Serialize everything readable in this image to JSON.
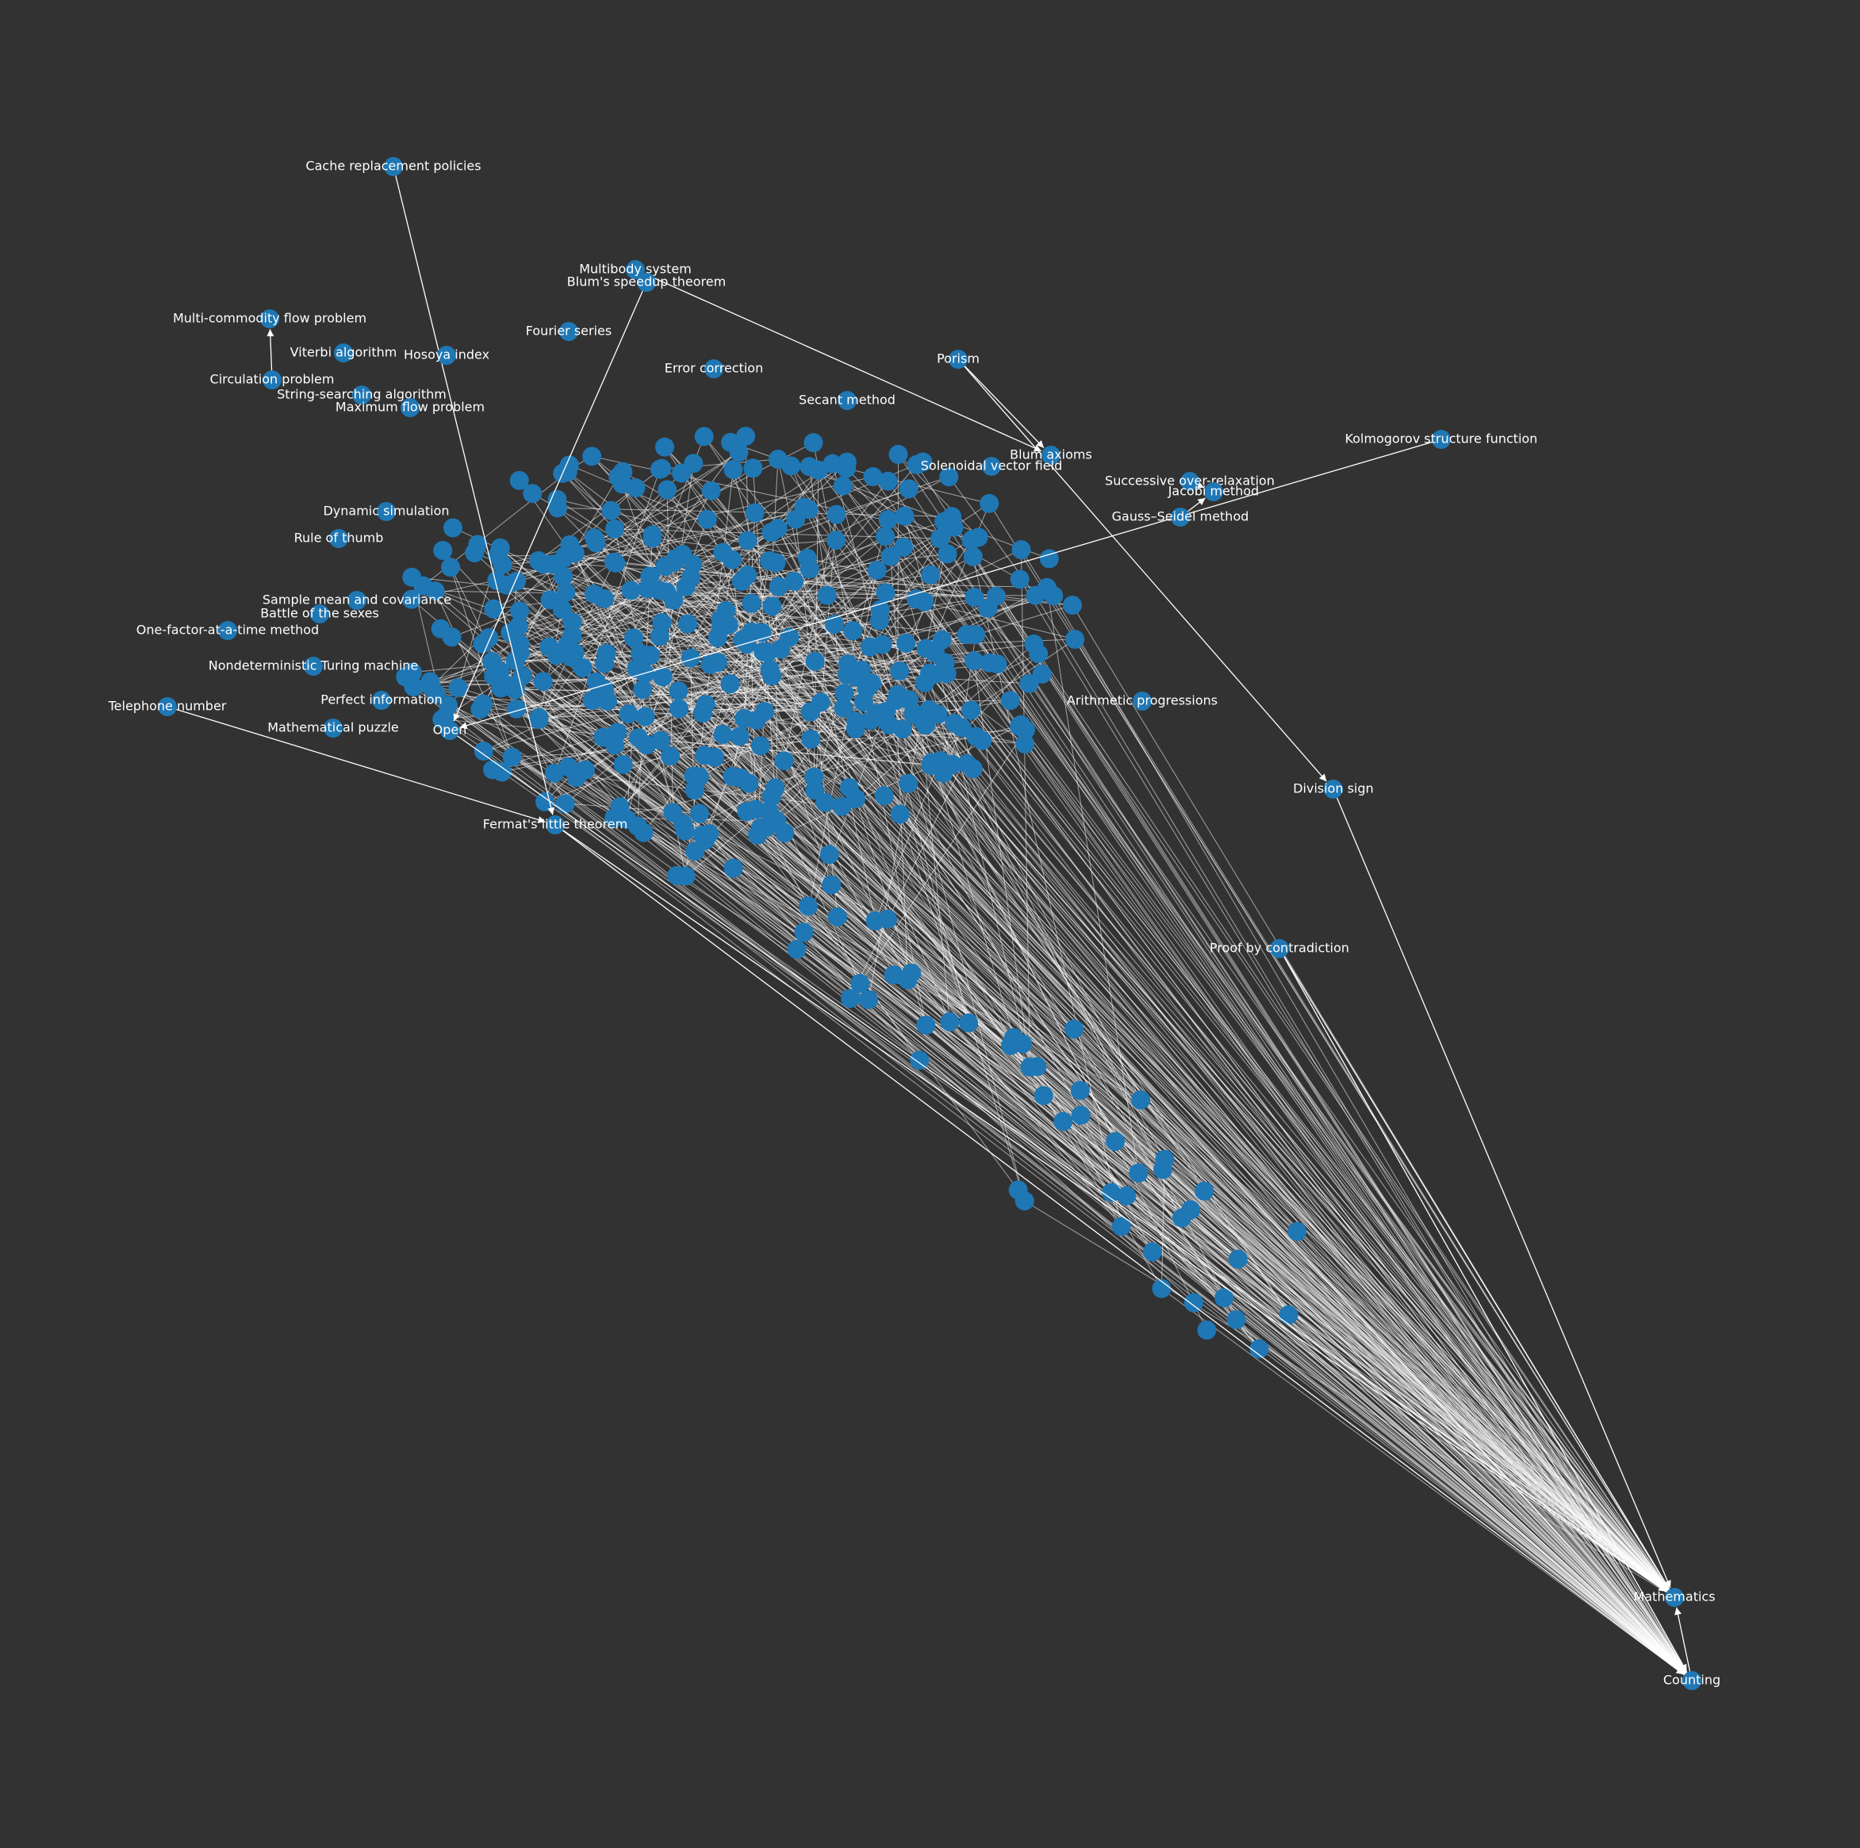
{
  "colors": {
    "background": "#323232",
    "node": "#1f77b4",
    "edge": "#ffffff",
    "label": "#ffffff"
  },
  "diagram": {
    "type": "directed network graph",
    "nodes": [
      {
        "id": "cache",
        "label": "Cache replacement policies"
      },
      {
        "id": "multibody",
        "label": "Multibody system"
      },
      {
        "id": "blum",
        "label": "Blum's speedup theorem"
      },
      {
        "id": "mcflow",
        "label": "Multi-commodity flow problem"
      },
      {
        "id": "fourier",
        "label": "Fourier series"
      },
      {
        "id": "viterbi",
        "label": "Viterbi algorithm"
      },
      {
        "id": "hosoya",
        "label": "Hosoya index"
      },
      {
        "id": "porism",
        "label": "Porism"
      },
      {
        "id": "circulation",
        "label": "Circulation problem"
      },
      {
        "id": "stringsearch",
        "label": "String-searching algorithm"
      },
      {
        "id": "maxflow",
        "label": "Maximum flow problem"
      },
      {
        "id": "secant",
        "label": "Secant method"
      },
      {
        "id": "errorcorr",
        "label": "Error correction"
      },
      {
        "id": "kolmogorov",
        "label": "Kolmogorov structure function"
      },
      {
        "id": "blumaxioms",
        "label": "Blum axioms"
      },
      {
        "id": "solenoidal",
        "label": "Solenoidal vector field"
      },
      {
        "id": "sor",
        "label": "Successive over-relaxation"
      },
      {
        "id": "jacobi",
        "label": "Jacobi method"
      },
      {
        "id": "gaussseidel",
        "label": "Gauss–Seidel method"
      },
      {
        "id": "dynsim",
        "label": "Dynamic simulation"
      },
      {
        "id": "rule",
        "label": "Rule of thumb"
      },
      {
        "id": "samplemean",
        "label": "Sample mean and covariance"
      },
      {
        "id": "battle",
        "label": "Battle of the sexes"
      },
      {
        "id": "ofat",
        "label": "One-factor-at-a-time method"
      },
      {
        "id": "nondet",
        "label": "Nondeterministic Turing machine"
      },
      {
        "id": "arith",
        "label": "Arithmetic progressions"
      },
      {
        "id": "telephone",
        "label": "Telephone number"
      },
      {
        "id": "puzzle",
        "label": "Mathematical puzzle"
      },
      {
        "id": "perfinfo",
        "label": "Perfect information"
      },
      {
        "id": "open",
        "label": "Open"
      },
      {
        "id": "division",
        "label": "Division sign"
      },
      {
        "id": "fermat",
        "label": "Fermat's little theorem"
      },
      {
        "id": "contradiction",
        "label": "Proof by contradiction"
      },
      {
        "id": "mathematics",
        "label": "Mathematics"
      },
      {
        "id": "counting",
        "label": "Counting"
      }
    ],
    "edges": [
      {
        "from": "cache",
        "to": "fermat"
      },
      {
        "from": "circulation",
        "to": "mcflow"
      },
      {
        "from": "kolmogorov",
        "to": "open"
      },
      {
        "from": "multibody",
        "to": "blumaxioms"
      },
      {
        "from": "blum",
        "to": "open"
      },
      {
        "from": "telephone",
        "to": "fermat"
      },
      {
        "from": "porism",
        "to": "division"
      },
      {
        "from": "porism",
        "to": "blumaxioms"
      },
      {
        "from": "sor",
        "to": "jacobi"
      },
      {
        "from": "gaussseidel",
        "to": "jacobi"
      },
      {
        "from": "division",
        "to": "mathematics"
      },
      {
        "from": "contradiction",
        "to": "mathematics"
      },
      {
        "from": "contradiction",
        "to": "counting"
      },
      {
        "from": "fermat",
        "to": "mathematics"
      },
      {
        "from": "fermat",
        "to": "counting"
      },
      {
        "from": "open",
        "to": "mathematics"
      },
      {
        "from": "counting",
        "to": "mathematics"
      }
    ]
  }
}
